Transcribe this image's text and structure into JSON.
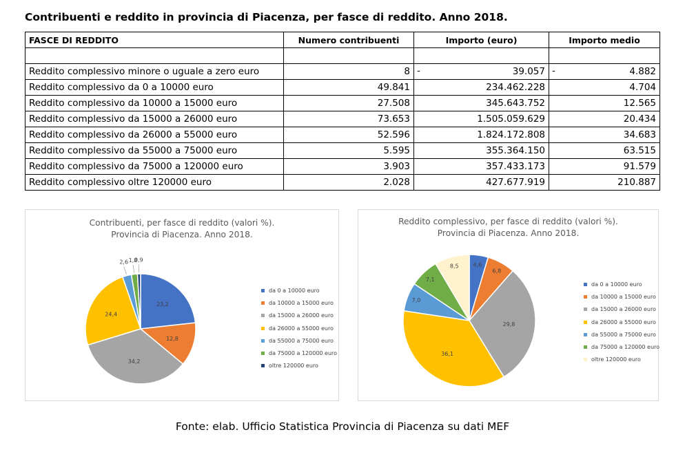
{
  "title": "Contribuenti e reddito in provincia di Piacenza, per fasce di reddito. Anno 2018.",
  "table": {
    "headers": [
      "FASCE DI REDDITO",
      "Numero contribuenti",
      "Importo (euro)",
      "Importo medio"
    ],
    "rows": [
      {
        "label": "Reddito complessivo minore o uguale a zero euro",
        "count": "8",
        "amount_sign": "-",
        "amount": "39.057",
        "avg_sign": "-",
        "avg": "4.882"
      },
      {
        "label": "Reddito complessivo da 0 a 10000 euro",
        "count": "49.841",
        "amount_sign": "",
        "amount": "234.462.228",
        "avg_sign": "",
        "avg": "4.704"
      },
      {
        "label": "Reddito complessivo da 10000 a 15000 euro",
        "count": "27.508",
        "amount_sign": "",
        "amount": "345.643.752",
        "avg_sign": "",
        "avg": "12.565"
      },
      {
        "label": "Reddito complessivo da 15000 a 26000 euro",
        "count": "73.653",
        "amount_sign": "",
        "amount": "1.505.059.629",
        "avg_sign": "",
        "avg": "20.434"
      },
      {
        "label": "Reddito complessivo da 26000 a 55000 euro",
        "count": "52.596",
        "amount_sign": "",
        "amount": "1.824.172.808",
        "avg_sign": "",
        "avg": "34.683"
      },
      {
        "label": "Reddito complessivo da 55000 a 75000 euro",
        "count": "5.595",
        "amount_sign": "",
        "amount": "355.364.150",
        "avg_sign": "",
        "avg": "63.515"
      },
      {
        "label": "Reddito complessivo da 75000 a 120000 euro",
        "count": "3.903",
        "amount_sign": "",
        "amount": "357.433.173",
        "avg_sign": "",
        "avg": "91.579"
      },
      {
        "label": "Reddito complessivo oltre 120000 euro",
        "count": "2.028",
        "amount_sign": "",
        "amount": "427.677.919",
        "avg_sign": "",
        "avg": "210.887"
      }
    ]
  },
  "chart_data": [
    {
      "type": "pie",
      "title_line1": "Contribuenti, per fasce di reddito (valori %).",
      "title_line2": "Provincia di Piacenza. Anno 2018.",
      "categories": [
        "da 0 a 10000 euro",
        "da 10000 a 15000 euro",
        "da 15000 a 26000 euro",
        "da 26000 a 55000 euro",
        "da 55000 a 75000 euro",
        "da 75000 a 120000 euro",
        "oltre 120000 euro"
      ],
      "values": [
        23.2,
        12.8,
        34.2,
        24.4,
        2.6,
        1.8,
        0.9
      ],
      "value_labels": [
        "23,2",
        "12,8",
        "34,2",
        "24,4",
        "2,6",
        "1,8",
        "0,9"
      ],
      "colors": [
        "#4472c4",
        "#ed7d31",
        "#a5a5a5",
        "#ffc000",
        "#5b9bd5",
        "#70ad47",
        "#264478"
      ],
      "legend_position": "right"
    },
    {
      "type": "pie",
      "title_line1": "Reddito complessivo, per fasce di reddito (valori %).",
      "title_line2": "Provincia di Piacenza. Anno 2018.",
      "categories": [
        "da 0 a 10000 euro",
        "da 10000 a 15000 euro",
        "da 15000 a 26000 euro",
        "da 26000 a 55000 euro",
        "da 55000 a 75000 euro",
        "da 75000 a 120000 euro",
        "oltre 120000 euro"
      ],
      "values": [
        4.6,
        6.8,
        29.8,
        36.1,
        7.0,
        7.1,
        8.5
      ],
      "value_labels": [
        "4,6",
        "6,8",
        "29,8",
        "36,1",
        "7,0",
        "7,1",
        "8,5"
      ],
      "colors": [
        "#4472c4",
        "#ed7d31",
        "#a5a5a5",
        "#ffc000",
        "#5b9bd5",
        "#70ad47",
        "#fff2cc"
      ],
      "legend_position": "right"
    }
  ],
  "source_note": "Fonte: elab. Ufficio Statistica Provincia di Piacenza su dati MEF"
}
